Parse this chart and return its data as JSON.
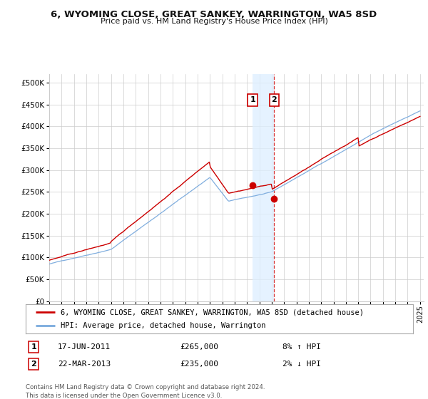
{
  "title": "6, WYOMING CLOSE, GREAT SANKEY, WARRINGTON, WA5 8SD",
  "subtitle": "Price paid vs. HM Land Registry's House Price Index (HPI)",
  "legend_line1": "6, WYOMING CLOSE, GREAT SANKEY, WARRINGTON, WA5 8SD (detached house)",
  "legend_line2": "HPI: Average price, detached house, Warrington",
  "transaction1_date": "17-JUN-2011",
  "transaction1_price": 265000,
  "transaction1_label": "8% ↑ HPI",
  "transaction2_date": "22-MAR-2013",
  "transaction2_price": 235000,
  "transaction2_label": "2% ↓ HPI",
  "footer": "Contains HM Land Registry data © Crown copyright and database right 2024.\nThis data is licensed under the Open Government Licence v3.0.",
  "red_color": "#cc0000",
  "blue_color": "#7aaadd",
  "background_color": "#ffffff",
  "grid_color": "#cccccc",
  "ylim": [
    0,
    520000
  ],
  "yticks": [
    0,
    50000,
    100000,
    150000,
    200000,
    250000,
    300000,
    350000,
    400000,
    450000,
    500000
  ],
  "year_start": 1995,
  "year_end": 2025
}
